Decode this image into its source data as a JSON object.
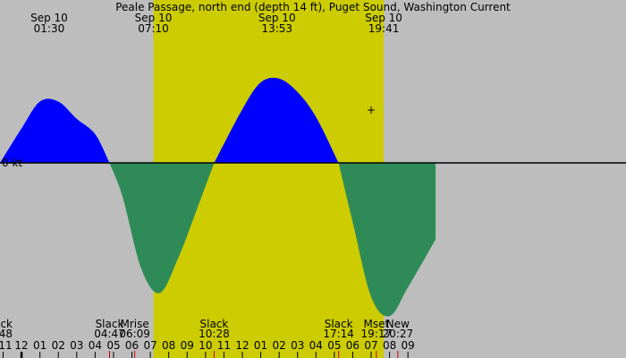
{
  "chart_data": {
    "type": "area",
    "title": "Peale Passage, north end (depth 14 ft), Puget Sound, Washington Current",
    "zero_label": "0 kt",
    "colors": {
      "background": "#bdbdbd",
      "daylight": "#cccc00",
      "flood": "#0000ff",
      "ebb": "#2e8b57",
      "baseline": "#000000"
    },
    "daylight": {
      "start": "07:10",
      "end": "19:41"
    },
    "x_range_hours": [
      -1.17,
      32.85
    ],
    "y_range_kt": [
      -0.78,
      0.47
    ],
    "top_labels": [
      {
        "date": "Sep 10",
        "time": "01:30"
      },
      {
        "date": "Sep 10",
        "time": "07:10"
      },
      {
        "date": "Sep 10",
        "time": "13:53"
      },
      {
        "date": "Sep 10",
        "time": "19:41"
      }
    ],
    "events": [
      {
        "name": "ck",
        "time": "48"
      },
      {
        "name": "Slack",
        "time": "04:47"
      },
      {
        "name": "Mrise",
        "time": "06:09"
      },
      {
        "name": "Slack",
        "time": "10:28"
      },
      {
        "name": "Slack",
        "time": "17:14"
      },
      {
        "name": "Mset",
        "time": "19:17"
      },
      {
        "name": "New",
        "time": "20:27"
      }
    ],
    "hour_tick_labels": [
      "11",
      "12",
      "01",
      "02",
      "03",
      "04",
      "05",
      "06",
      "07",
      "08",
      "09",
      "10",
      "11",
      "12",
      "01",
      "02",
      "03",
      "04",
      "05",
      "06",
      "07",
      "08",
      "09"
    ],
    "series": [
      {
        "name": "",
        "x_hours": [
          -1.17,
          0.0,
          1.0,
          2.0,
          3.0,
          4.0,
          4.78
        ],
        "values_kt": [
          0.0,
          0.18,
          0.32,
          0.32,
          0.23,
          0.15,
          0.0
        ]
      },
      {
        "name": "",
        "x_hours": [
          4.78,
          5.5,
          6.5,
          7.5,
          8.5,
          9.5,
          10.47
        ],
        "values_kt": [
          0.0,
          -0.18,
          -0.55,
          -0.68,
          -0.5,
          -0.25,
          0.0
        ]
      },
      {
        "name": "",
        "x_hours": [
          10.47,
          12.0,
          13.0,
          14.0,
          15.0,
          16.0,
          17.23
        ],
        "values_kt": [
          0.0,
          0.28,
          0.42,
          0.44,
          0.37,
          0.24,
          0.0
        ]
      },
      {
        "name": "",
        "x_hours": [
          17.23,
          18.0,
          19.0,
          20.0,
          21.0,
          22.5
        ],
        "values_kt": [
          0.0,
          -0.31,
          -0.7,
          -0.8,
          -0.65,
          -0.4
        ]
      }
    ]
  }
}
